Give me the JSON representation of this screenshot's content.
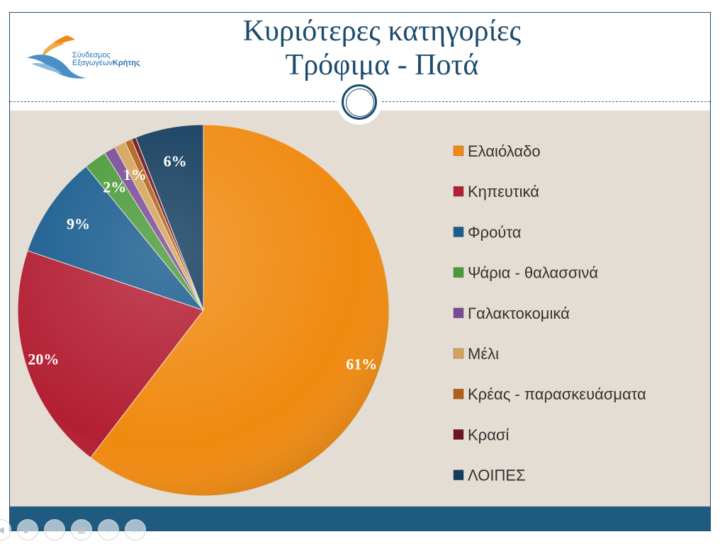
{
  "title_line1": "Κυριότερες κατηγορίες",
  "title_line2": "Τρόφιμα - Ποτά",
  "logo": {
    "line1": "Σύνδεσμος",
    "line2a": "Εξαγωγέων",
    "line2b": "Κρήτης"
  },
  "chart_data": {
    "type": "pie",
    "slices": [
      {
        "name": "Ελαιόλαδο",
        "value": 61,
        "label": "61%",
        "color": "#f08a10"
      },
      {
        "name": "Κηπευτικά",
        "value": 20,
        "label": "20%",
        "color": "#b31f33"
      },
      {
        "name": "Φρούτα",
        "value": 9,
        "label": "9%",
        "color": "#1a5d8f"
      },
      {
        "name": "Ψάρια - θαλασσινά",
        "value": 2,
        "label": "2%",
        "color": "#4b9a3a"
      },
      {
        "name": "Γαλακτοκομικά",
        "value": 1,
        "label": "",
        "color": "#7a4b97"
      },
      {
        "name": "Μέλι",
        "value": 1,
        "label": "1%",
        "color": "#d4a35a"
      },
      {
        "name": "Κρέας - παρασκευάσματα",
        "value": 0.6,
        "label": "",
        "color": "#b55f15"
      },
      {
        "name": "Κρασί",
        "value": 0.4,
        "label": "",
        "color": "#6e1420"
      },
      {
        "name": "ΛΟΙΠΕΣ",
        "value": 6,
        "label": "6%",
        "color": "#143d5e"
      }
    ],
    "legend_position": "right"
  },
  "controls": [
    "prev-icon",
    "next-icon",
    "pen-icon",
    "slides-icon",
    "zoom-icon",
    "more-icon"
  ]
}
